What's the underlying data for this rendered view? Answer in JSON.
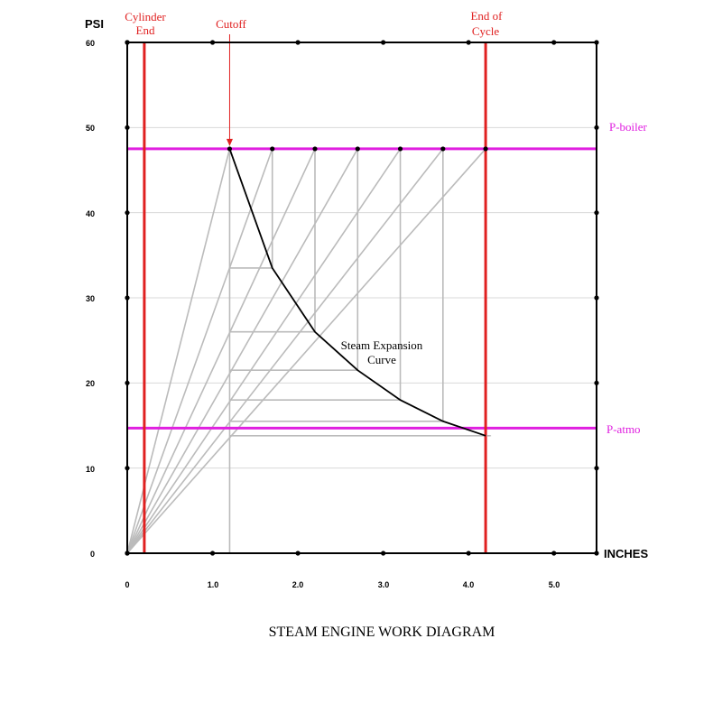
{
  "diagram": {
    "title": "STEAM ENGINE WORK DIAGRAM",
    "y_unit": "PSI",
    "x_unit": "INCHES",
    "y_ticks": [
      "60",
      "50",
      "40",
      "30",
      "20",
      "10",
      "0"
    ],
    "x_ticks": [
      "0",
      "1.0",
      "2.0",
      "3.0",
      "4.0",
      "5.0"
    ],
    "labels": {
      "cylinder_end_line1": "Cylinder",
      "cylinder_end_line2": "End",
      "cutoff": "Cutoff",
      "end_of_cycle_line1": "End  of",
      "end_of_cycle_line2": "Cycle",
      "p_boiler": "P-boiler",
      "p_atmo": "P-atmo",
      "curve_line1": "Steam Expansion",
      "curve_line2": "Curve"
    },
    "colors": {
      "frame": "#000000",
      "cylinder_lines": "#e02020",
      "pressure_lines": "#e020e0",
      "construction": "#bbbbbb",
      "gridlines": "#d8d8d8",
      "curve": "#000000"
    }
  },
  "chart_data": {
    "type": "line",
    "xlabel": "INCHES",
    "ylabel": "PSI",
    "xlim": [
      0,
      5.5
    ],
    "ylim": [
      0,
      60
    ],
    "x_ticks": [
      0,
      1,
      2,
      3,
      4,
      5
    ],
    "y_ticks": [
      0,
      10,
      20,
      30,
      40,
      50,
      60
    ],
    "grid": true,
    "p_boiler": 47.5,
    "p_atmo": 14.7,
    "cylinder_end_x": 0.2,
    "cutoff_x": 1.2,
    "end_of_cycle_x": 4.2,
    "series": [
      {
        "x": [
          1.2,
          1.7,
          2.2,
          2.7,
          3.2,
          3.7,
          4.2
        ],
        "y": [
          47.5,
          33.5,
          26.0,
          21.5,
          18.0,
          15.5,
          13.8
        ]
      }
    ]
  }
}
